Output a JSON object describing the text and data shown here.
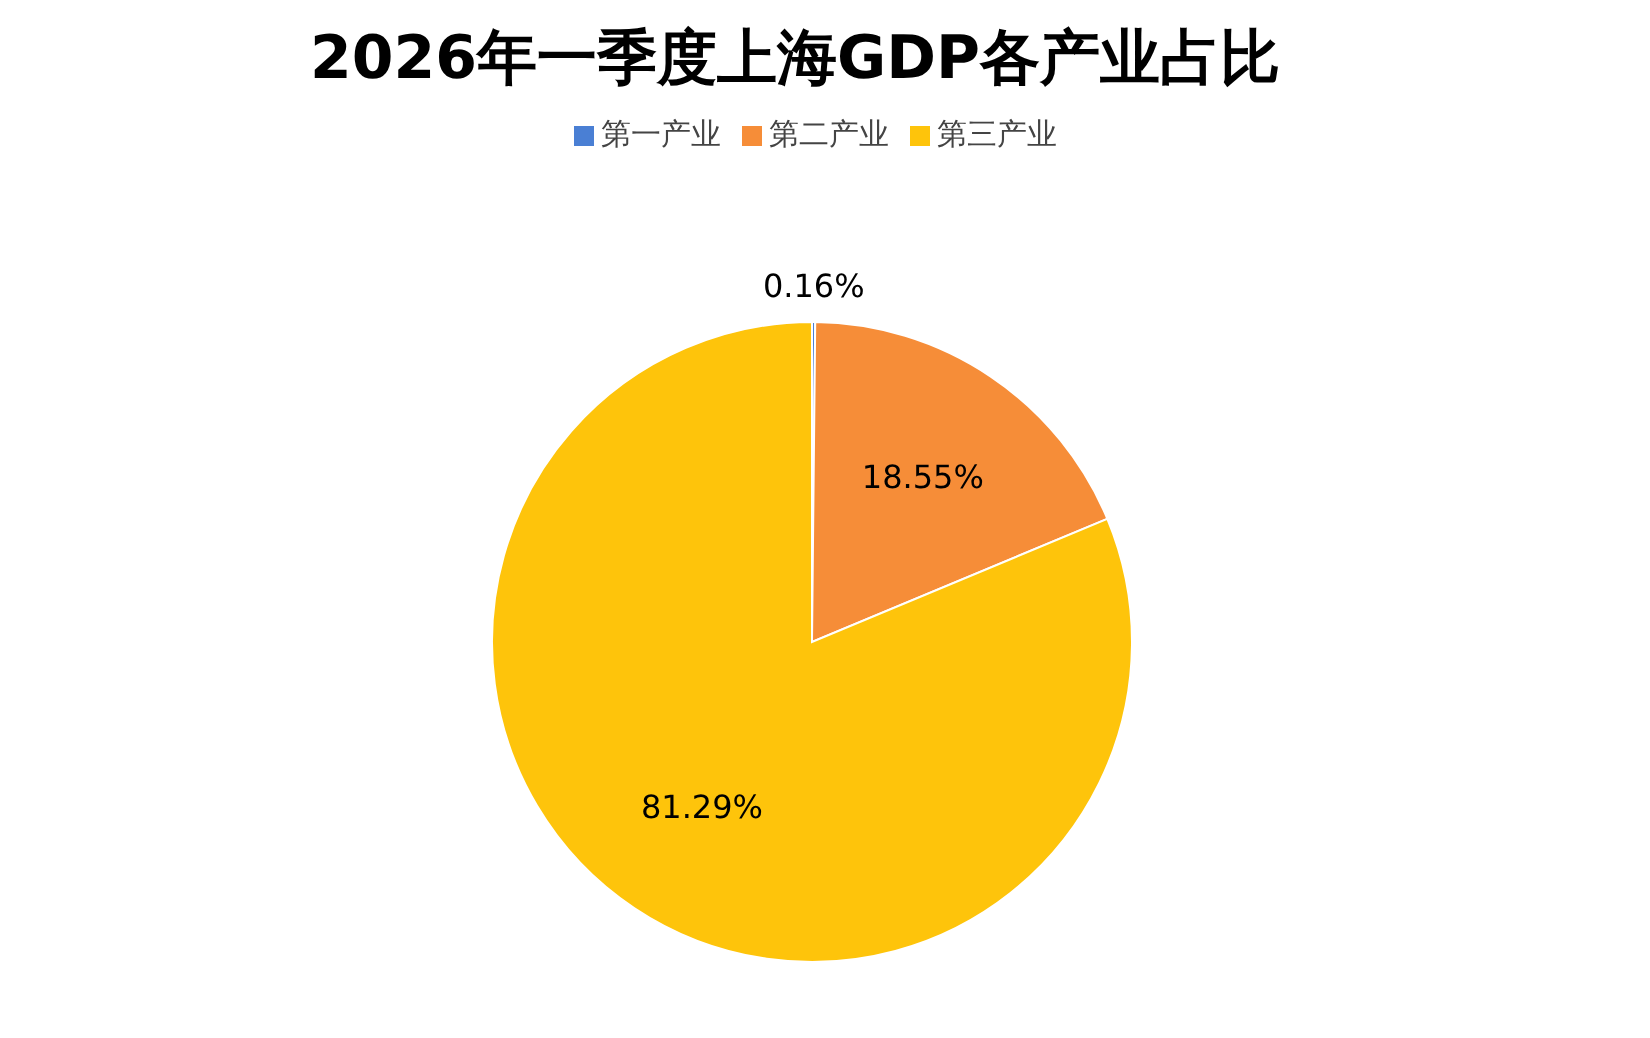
{
  "chart_data": {
    "type": "pie",
    "title": "2026年一季度上海GDP各产业占比",
    "categories": [
      "第一产业",
      "第二产业",
      "第三产业"
    ],
    "values": [
      0.16,
      18.55,
      81.29
    ],
    "colors": [
      "#4a7fd4",
      "#f68d38",
      "#fec40b"
    ],
    "value_labels": [
      "0.16%",
      "18.55%",
      "81.29%"
    ],
    "legend": "top"
  }
}
